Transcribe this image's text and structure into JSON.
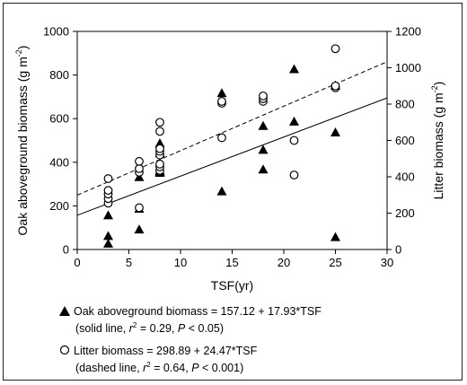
{
  "chart_data": {
    "type": "scatter",
    "xlabel": "TSF(yr)",
    "ylabel_left": "Oak aboveground biomass (g m",
    "ylabel_right": "Litter biomass (g m",
    "ylabel_sup": "-2",
    "ylabel_close": ")",
    "xlim": [
      0,
      30
    ],
    "ylim_left": [
      0,
      1000
    ],
    "ylim_right": [
      0,
      1200
    ],
    "x_ticks": [
      "0",
      "5",
      "10",
      "15",
      "20",
      "25",
      "30"
    ],
    "y_ticks_left": [
      "0",
      "200",
      "400",
      "600",
      "800",
      "1000"
    ],
    "y_ticks_right": [
      "0",
      "200",
      "400",
      "600",
      "800",
      "1000",
      "1200"
    ],
    "grid": false,
    "legend_position": "bottom",
    "series": [
      {
        "name": "Oak aboveground biomass",
        "marker": "filled-triangle",
        "axis": "left",
        "points": [
          [
            3,
            25
          ],
          [
            3,
            60
          ],
          [
            3,
            155
          ],
          [
            6,
            90
          ],
          [
            6,
            185
          ],
          [
            6,
            330
          ],
          [
            8,
            350
          ],
          [
            8,
            355
          ],
          [
            8,
            360
          ],
          [
            8,
            440
          ],
          [
            8,
            485
          ],
          [
            14,
            265
          ],
          [
            14,
            715
          ],
          [
            18,
            365
          ],
          [
            18,
            455
          ],
          [
            18,
            565
          ],
          [
            21,
            585
          ],
          [
            21,
            825
          ],
          [
            25,
            55
          ],
          [
            25,
            535
          ],
          [
            25,
            750
          ]
        ],
        "fit": {
          "intercept": 157.12,
          "slope": 17.93,
          "style": "solid"
        }
      },
      {
        "name": "Litter biomass",
        "marker": "open-circle",
        "axis": "right",
        "points": [
          [
            3,
            255
          ],
          [
            3,
            280
          ],
          [
            3,
            305
          ],
          [
            3,
            325
          ],
          [
            3,
            390
          ],
          [
            6,
            230
          ],
          [
            6,
            425
          ],
          [
            6,
            445
          ],
          [
            6,
            485
          ],
          [
            8,
            435
          ],
          [
            8,
            455
          ],
          [
            8,
            470
          ],
          [
            8,
            520
          ],
          [
            8,
            540
          ],
          [
            8,
            555
          ],
          [
            8,
            650
          ],
          [
            8,
            700
          ],
          [
            14,
            615
          ],
          [
            14,
            805
          ],
          [
            14,
            815
          ],
          [
            18,
            815
          ],
          [
            18,
            830
          ],
          [
            18,
            845
          ],
          [
            21,
            410
          ],
          [
            21,
            600
          ],
          [
            25,
            890
          ],
          [
            25,
            900
          ],
          [
            25,
            1105
          ]
        ],
        "fit": {
          "intercept": 298.89,
          "slope": 24.47,
          "style": "dashed"
        }
      }
    ]
  },
  "legend": {
    "oak_text": "Oak aboveground biomass = 157.12 + 17.93*TSF",
    "oak_note_a": "(solid line, ",
    "oak_note_r": "r",
    "oak_note_sup": "2",
    "oak_note_b": " = 0.29, ",
    "oak_note_p": "P",
    "oak_note_c": " < 0.05)",
    "litter_text": "Litter biomass = 298.89 + 24.47*TSF",
    "litter_note_a": "(dashed line, ",
    "litter_note_r": "r",
    "litter_note_sup": "2",
    "litter_note_b": " = 0.64, ",
    "litter_note_p": "P",
    "litter_note_c": " < 0.001)"
  }
}
